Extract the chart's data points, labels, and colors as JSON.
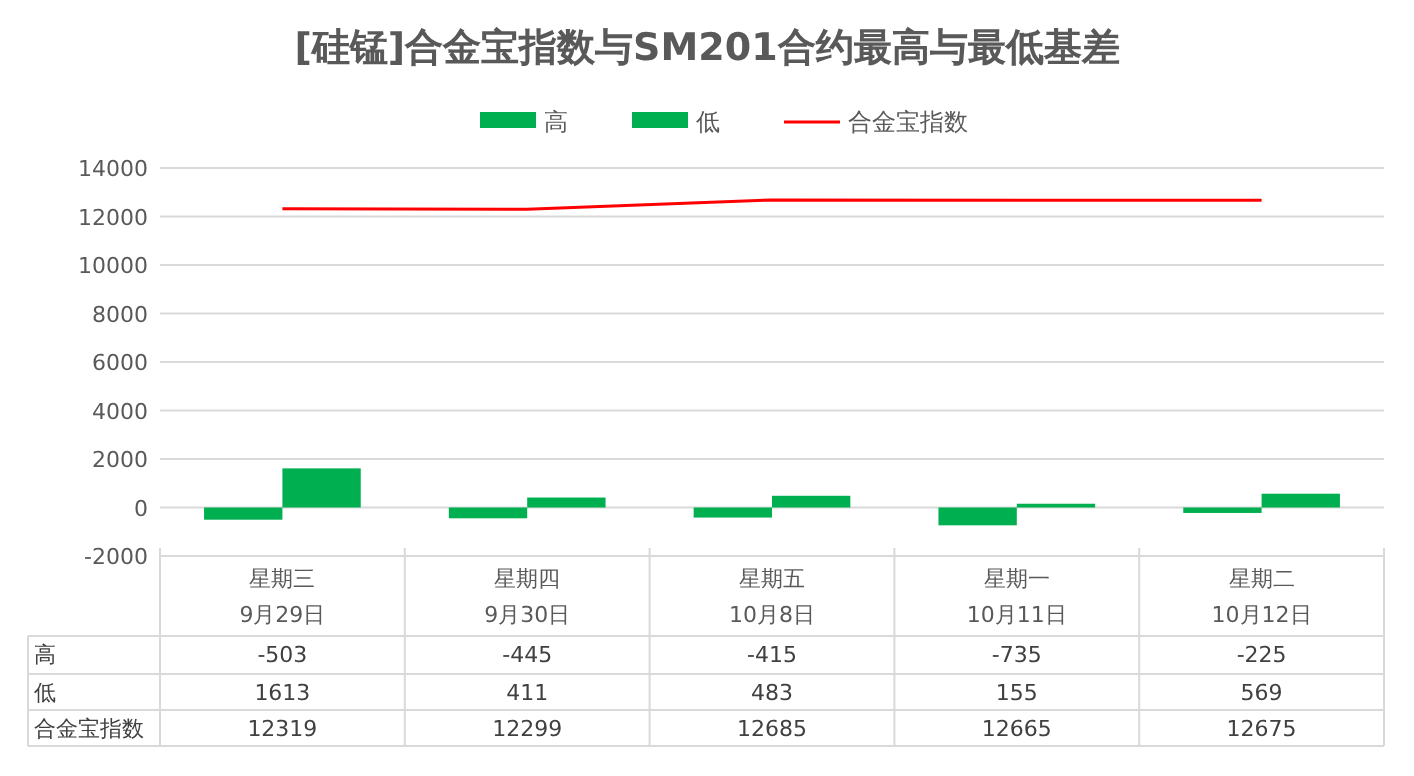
{
  "chart_data": {
    "type": "bar",
    "title": "[硅锰]合金宝指数与SM201合约最高与最低基差",
    "categories": [
      "星期三\n9月29日",
      "星期四\n9月30日",
      "星期五\n10月8日",
      "星期一\n10月11日",
      "星期二\n10月12日"
    ],
    "series": [
      {
        "name": "高",
        "color": "#00b050",
        "values": [
          -503,
          -445,
          -415,
          -735,
          -225
        ]
      },
      {
        "name": "低",
        "color": "#00b050",
        "values": [
          1613,
          411,
          483,
          155,
          569
        ]
      },
      {
        "name": "合金宝指数",
        "type": "line",
        "color": "#ff0000",
        "values": [
          12319,
          12299,
          12685,
          12665,
          12675
        ]
      }
    ],
    "ylim": [
      -2000,
      14000
    ],
    "yticks": [
      -2000,
      0,
      2000,
      4000,
      6000,
      8000,
      10000,
      12000,
      14000
    ],
    "grid": "y",
    "legend": "top",
    "data_labels": true
  }
}
